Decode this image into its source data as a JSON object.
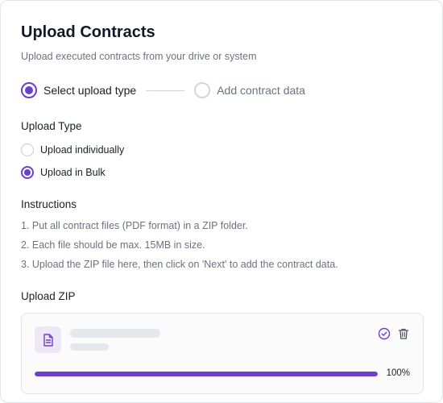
{
  "header": {
    "title": "Upload Contracts",
    "subtitle": "Upload executed contracts from your drive or system"
  },
  "stepper": {
    "steps": [
      {
        "label": "Select upload type",
        "state": "active"
      },
      {
        "label": "Add contract data",
        "state": "inactive"
      }
    ]
  },
  "upload_type": {
    "title": "Upload Type",
    "options": [
      {
        "label": "Upload individually",
        "selected": false
      },
      {
        "label": "Upload in Bulk",
        "selected": true
      }
    ]
  },
  "instructions": {
    "title": "Instructions",
    "items": [
      "1. Put all contract files (PDF format) in a ZIP folder.",
      "2. Each file should be max. 15MB in size.",
      "3. Upload the ZIP file here, then click on 'Next' to add the contract data."
    ]
  },
  "upload_zip": {
    "title": "Upload ZIP",
    "file": {
      "icon": "document-icon",
      "progress": 100,
      "progress_label": "100%",
      "status_icon": "check-circle-icon",
      "delete_icon": "trash-icon"
    }
  },
  "colors": {
    "accent": "#6d3fce",
    "text_primary": "#1b1f2a",
    "text_secondary": "#6b7280"
  }
}
